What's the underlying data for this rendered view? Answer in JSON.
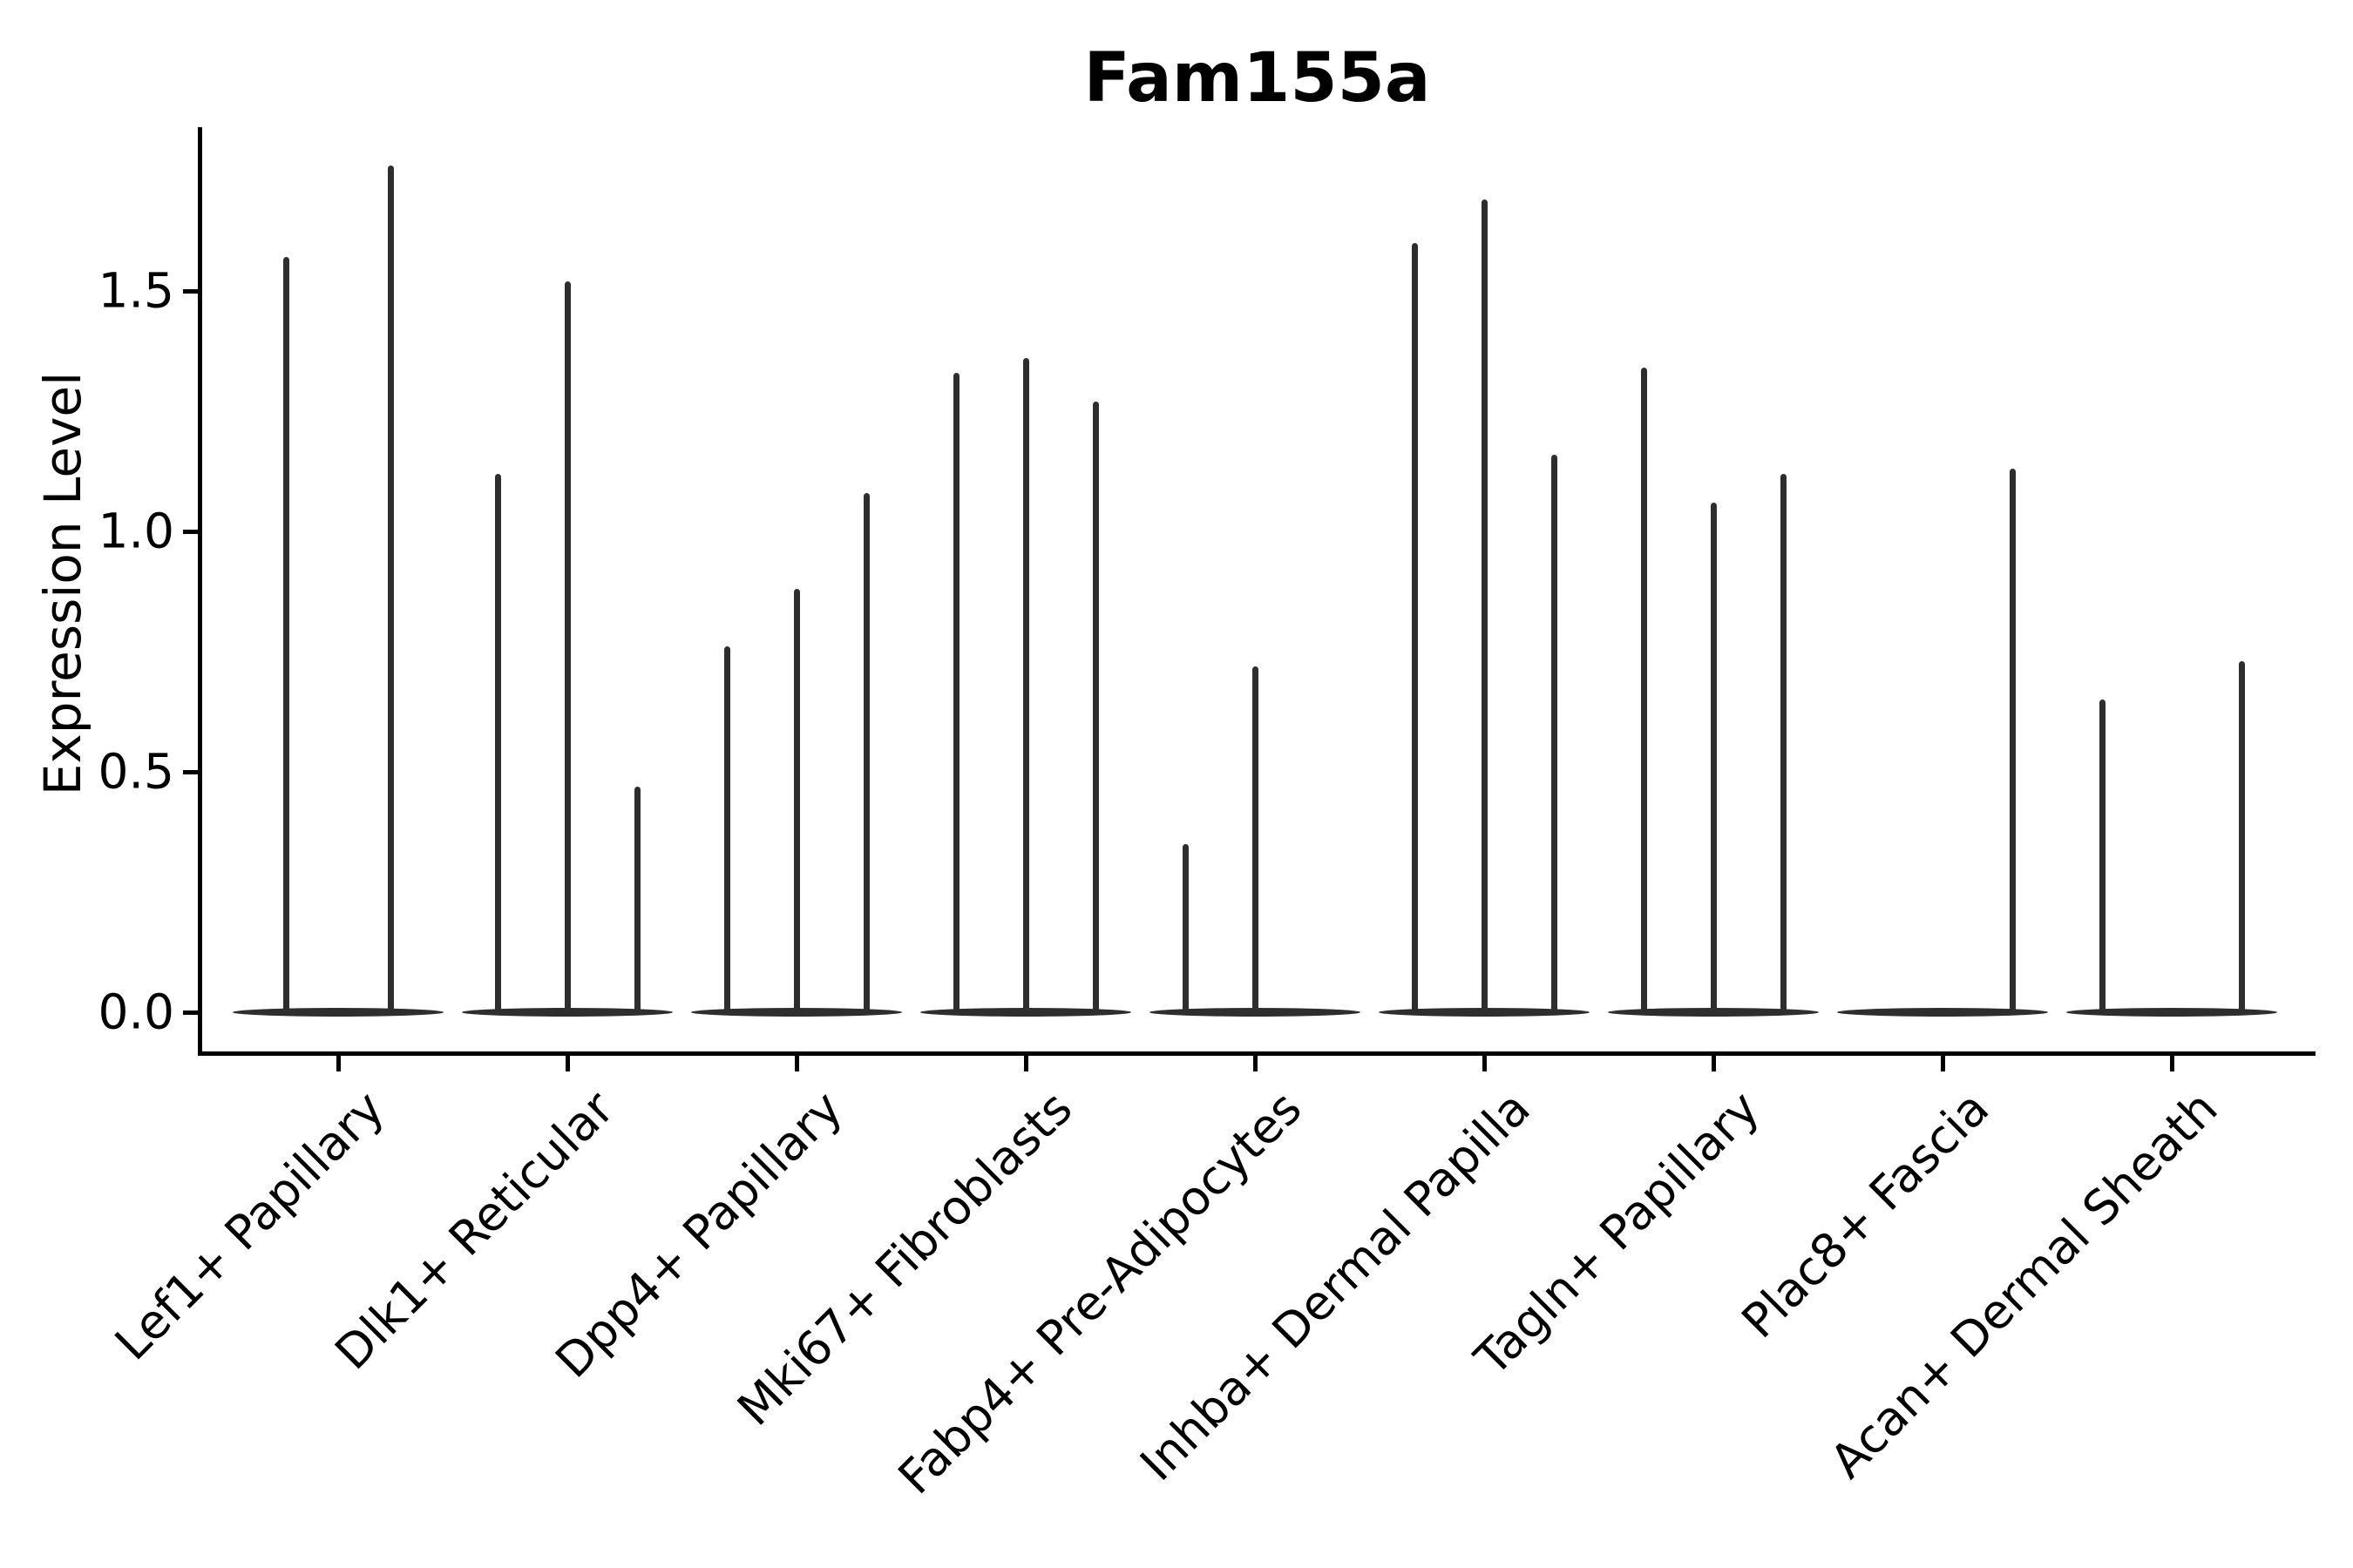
{
  "chart_data": {
    "type": "violin",
    "title": "Fam155a",
    "ylabel": "Expression Level",
    "xlabel": "",
    "grid": false,
    "legend": "none",
    "ylim": [
      -0.09,
      1.84
    ],
    "yticks": [
      "0.0",
      "0.5",
      "1.0",
      "1.5"
    ],
    "ytick_values": [
      0.0,
      0.5,
      1.0,
      1.5
    ],
    "violin_color": "#2e2e2e",
    "axis_color": "#000000",
    "categories": [
      "Lef1+ Papillary",
      "Dlk1+ Reticular",
      "Dpp4+ Papillary",
      "Mki67+ Fibroblasts",
      "Fabp4+ Pre-Adipocytes",
      "Inhba+ Dermal Papilla",
      "Tagln+ Papillary",
      "Plac8+ Fascia",
      "Acan+ Dermal Sheath"
    ],
    "groups": [
      {
        "category": "Lef1+ Papillary",
        "violins": [
          {
            "max": 1.57
          },
          {
            "max": 1.76
          }
        ]
      },
      {
        "category": "Dlk1+ Reticular",
        "violins": [
          {
            "max": 1.12
          },
          {
            "max": 1.52
          },
          {
            "max": 0.47
          }
        ]
      },
      {
        "category": "Dpp4+ Papillary",
        "violins": [
          {
            "max": 0.76
          },
          {
            "max": 0.88
          },
          {
            "max": 1.08
          }
        ]
      },
      {
        "category": "Mki67+ Fibroblasts",
        "violins": [
          {
            "max": 1.33
          },
          {
            "max": 1.36
          },
          {
            "max": 1.27
          }
        ]
      },
      {
        "category": "Fabp4+ Pre-Adipocytes",
        "violins": [
          {
            "max": 0.35
          },
          {
            "max": 0.72
          },
          {
            "max": 0
          }
        ]
      },
      {
        "category": "Inhba+ Dermal Papilla",
        "violins": [
          {
            "max": 1.6
          },
          {
            "max": 1.69
          },
          {
            "max": 1.16
          }
        ]
      },
      {
        "category": "Tagln+ Papillary",
        "violins": [
          {
            "max": 1.34
          },
          {
            "max": 1.06
          },
          {
            "max": 1.12
          }
        ]
      },
      {
        "category": "Plac8+ Fascia",
        "violins": [
          {
            "max": 0
          },
          {
            "max": 0
          },
          {
            "max": 1.13
          }
        ]
      },
      {
        "category": "Acan+ Dermal Sheath",
        "violins": [
          {
            "max": 0.65
          },
          {
            "max": 0
          },
          {
            "max": 0.73
          }
        ]
      }
    ]
  }
}
